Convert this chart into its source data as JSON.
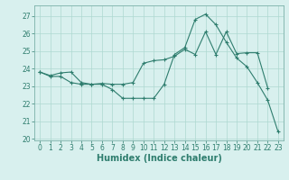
{
  "xlabel": "Humidex (Indice chaleur)",
  "x": [
    0,
    1,
    2,
    3,
    4,
    5,
    6,
    7,
    8,
    9,
    10,
    11,
    12,
    13,
    14,
    15,
    16,
    17,
    18,
    19,
    20,
    21,
    22,
    23
  ],
  "line1": [
    23.8,
    23.6,
    23.75,
    23.8,
    23.2,
    23.1,
    23.15,
    23.1,
    23.1,
    23.2,
    24.3,
    24.45,
    24.5,
    24.7,
    25.1,
    24.8,
    26.1,
    24.8,
    26.1,
    24.85,
    24.9,
    24.9,
    22.9,
    null
  ],
  "line2": [
    23.8,
    23.55,
    23.55,
    23.2,
    23.1,
    23.1,
    23.1,
    22.8,
    22.3,
    22.3,
    22.3,
    22.3,
    23.1,
    24.8,
    25.2,
    26.8,
    27.1,
    26.5,
    25.5,
    24.6,
    24.1,
    23.2,
    22.2,
    20.4
  ],
  "color": "#2e7d6e",
  "background": "#d8f0ee",
  "grid_color": "#aed8d0",
  "ylim": [
    19.9,
    27.6
  ],
  "xlim": [
    -0.5,
    23.5
  ],
  "yticks": [
    20,
    21,
    22,
    23,
    24,
    25,
    26,
    27
  ],
  "xticks": [
    0,
    1,
    2,
    3,
    4,
    5,
    6,
    7,
    8,
    9,
    10,
    11,
    12,
    13,
    14,
    15,
    16,
    17,
    18,
    19,
    20,
    21,
    22,
    23
  ],
  "tick_fontsize": 5.5,
  "xlabel_fontsize": 7
}
